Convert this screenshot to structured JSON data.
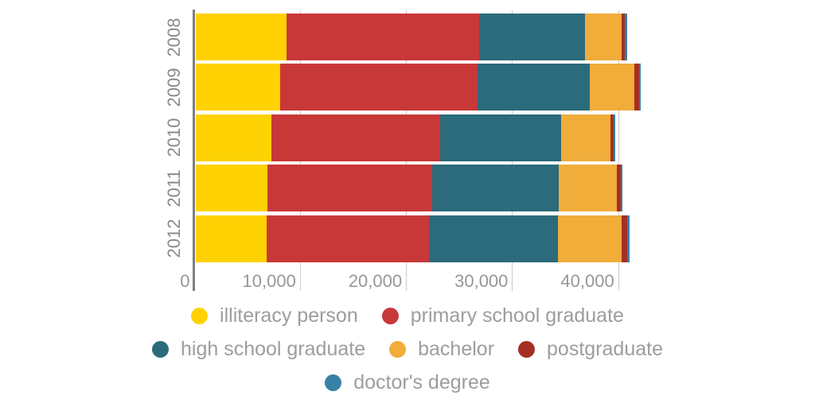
{
  "chart_data": {
    "type": "bar",
    "orientation": "horizontal",
    "stacked": true,
    "title": "",
    "xlabel": "",
    "ylabel": "",
    "categories": [
      "2008",
      "2009",
      "2010",
      "2011",
      "2012"
    ],
    "series": [
      {
        "name": "illiteracy person",
        "color": "#ffd203",
        "values": [
          8600,
          8000,
          7200,
          6800,
          6700
        ]
      },
      {
        "name": "primary school graduate",
        "color": "#c93838",
        "values": [
          18150,
          18600,
          15850,
          15500,
          15350
        ]
      },
      {
        "name": "high school graduate",
        "color": "#2b6b7c",
        "values": [
          10000,
          10600,
          11400,
          11950,
          12100
        ]
      },
      {
        "name": "bachelor",
        "color": "#f0ad3a",
        "values": [
          3400,
          4200,
          4650,
          5450,
          6000
        ]
      },
      {
        "name": "postgraduate",
        "color": "#a52f23",
        "values": [
          330,
          400,
          320,
          430,
          550
        ]
      },
      {
        "name": "doctor's degree",
        "color": "#3780a6",
        "values": [
          220,
          180,
          130,
          130,
          200
        ]
      }
    ],
    "x_ticks": [
      0,
      10000,
      20000,
      30000,
      40000
    ],
    "x_tick_labels": [
      "0",
      "10,000",
      "20,000",
      "30,000",
      "40,000"
    ],
    "xlim": [
      0,
      42500
    ],
    "grid": "vertical-gridlines",
    "legend_position": "bottom",
    "legend_rows": [
      [
        "illiteracy person",
        "primary school graduate"
      ],
      [
        "high school graduate",
        "bachelor",
        "postgraduate"
      ],
      [
        "doctor's degree"
      ]
    ]
  },
  "colors": {
    "gridline": "#cccccc",
    "axis_line": "#7e7e7e",
    "tick_text": "#979797",
    "year_text": "#8a8a8a",
    "legend_text": "#9d9d9d",
    "background": "#ffffff"
  }
}
